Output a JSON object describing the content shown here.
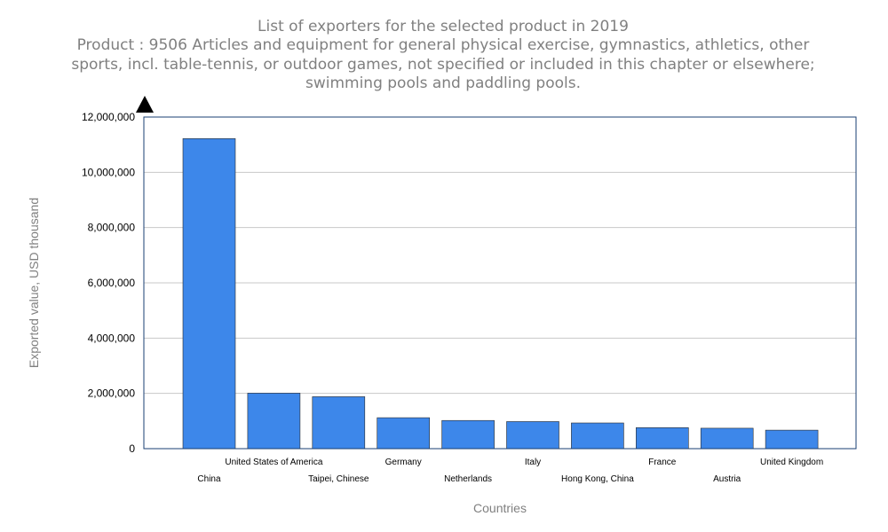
{
  "chart_data": {
    "type": "bar",
    "title": "List of exporters for the selected product in 2019",
    "subtitle": [
      "Product : 9506 Articles and equipment for general physical exercise, gymnastics, athletics, other",
      "sports, incl. table-tennis, or outdoor games, not specified or included in this chapter or elsewhere;",
      "swimming pools and paddling pools."
    ],
    "xlabel": "Countries",
    "ylabel": "Exported value, USD thousand",
    "ylim": [
      0,
      12000000
    ],
    "yticks": [
      0,
      2000000,
      4000000,
      6000000,
      8000000,
      10000000,
      12000000
    ],
    "ytick_labels": [
      "0",
      "2,000,000",
      "4,000,000",
      "6,000,000",
      "8,000,000",
      "10,000,000",
      "12,000,000"
    ],
    "grid": true,
    "legend": "none",
    "bar_color": "#3d87ea",
    "categories": [
      "China",
      "United States of America",
      "Taipei, Chinese",
      "Germany",
      "Netherlands",
      "Italy",
      "Hong Kong, China",
      "France",
      "Austria",
      "United Kingdom"
    ],
    "values": [
      11220000,
      2010000,
      1880000,
      1120000,
      1020000,
      980000,
      930000,
      760000,
      740000,
      670000
    ]
  }
}
